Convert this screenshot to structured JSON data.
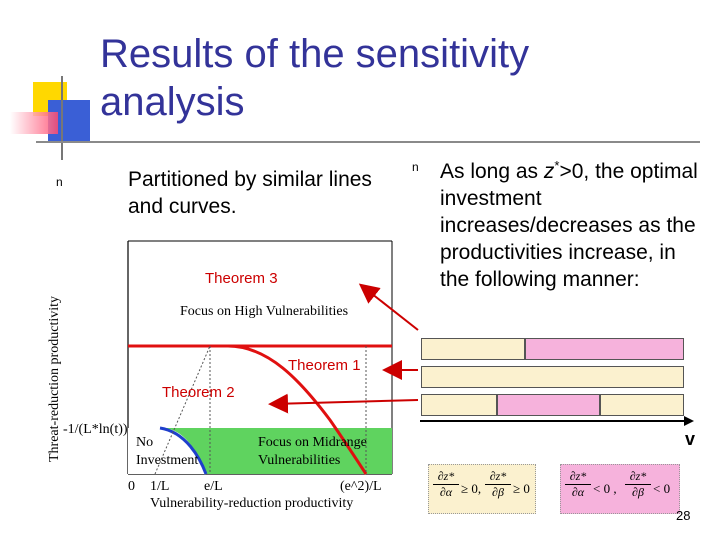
{
  "slide": {
    "title": "Results of the sensitivity analysis",
    "left_bullet": "Partitioned by similar lines and curves.",
    "right_bullet": {
      "before": "As long as ",
      "var": "z",
      "sup": "*",
      "after": ">0, the optimal investment increases/decreases as the productivities increase, in the following manner:"
    },
    "page_number": "28",
    "bullet_symbol": "n"
  },
  "figure": {
    "y_axis_label": "Threat-reduction productivity",
    "x_axis_label": "Vulnerability-reduction productivity",
    "y_tick": "-1/(L*ln(t))",
    "x_ticks": [
      "0",
      "1/L",
      "e/L",
      "(e^2)/L"
    ],
    "region_high": "Focus on High Vulnerabilities",
    "region_mid_line1": "Focus on Midrange",
    "region_mid_line2": "Vulnerabilities",
    "region_none_line1": "No",
    "region_none_line2": "Investment",
    "theorem3": "Theorem 3",
    "theorem1": "Theorem 1",
    "theorem2": "Theorem 2"
  },
  "legend": {
    "v_label": "v",
    "formula_a": {
      "num1": "∂z*",
      "den1": "∂α",
      "rel1": "≥ 0,",
      "num2": "∂z*",
      "den2": "∂β",
      "rel2": "≥ 0"
    },
    "formula_b": {
      "num1": "∂z*",
      "den1": "∂α",
      "rel1": "< 0 ,",
      "num2": "∂z*",
      "den2": "∂β",
      "rel2": "< 0"
    }
  },
  "colors": {
    "title": "#333399",
    "theorem": "#cc0000",
    "green_region": "#5fd35f",
    "pink_region": "#f6b2dc",
    "tan_bar": "#fbf1cf",
    "curve_red": "#e01010",
    "curve_blue": "#1f3fcc",
    "arrow": "#cc0000"
  }
}
